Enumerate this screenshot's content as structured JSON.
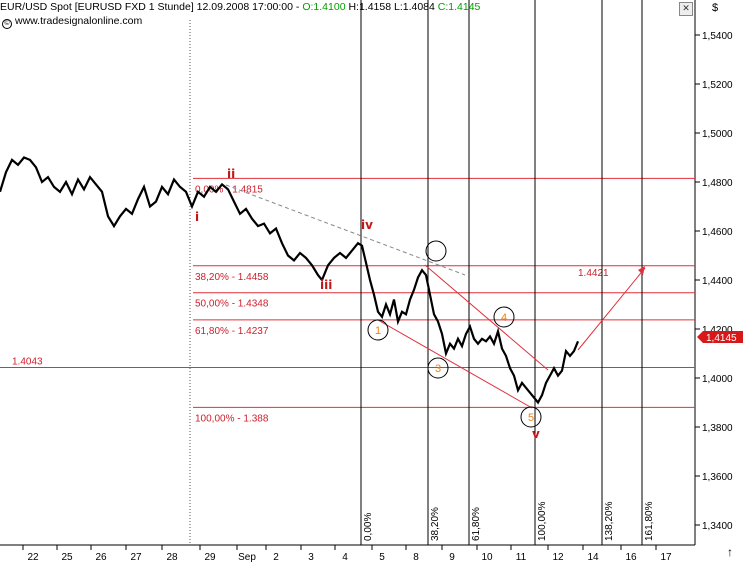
{
  "header": {
    "symbol": "EUR/USD Spot [EURUSD FXD  1 Stunde] 12.09.2008 17:00:00  - ",
    "open": "O:1.4100",
    "high_low": " H:1.4158  L:1.4084 ",
    "close": "C:1.4145",
    "source": "www.tradesignalonline.com",
    "currency": "$",
    "close_button": "✕",
    "scroll_icon": "arrow-up-icon"
  },
  "chart_data": {
    "type": "line",
    "y_axis_ticks": [
      "1,5400",
      "1,5200",
      "1,5000",
      "1,4800",
      "1,4600",
      "1,4400",
      "1,4200",
      "1,4000",
      "1,3800",
      "1,3600",
      "1,3400"
    ],
    "ylim": [
      1.328,
      1.563
    ],
    "x_axis_ticks": [
      "22",
      "25",
      "26",
      "27",
      "28",
      "29",
      "Sep",
      "2",
      "3",
      "4",
      "5",
      "8",
      "9",
      "10",
      "11",
      "12",
      "14",
      "16",
      "17"
    ],
    "last_price": "1,4145",
    "price_path": [
      [
        0,
        1.476
      ],
      [
        6,
        1.484
      ],
      [
        12,
        1.489
      ],
      [
        18,
        1.487
      ],
      [
        24,
        1.49
      ],
      [
        30,
        1.489
      ],
      [
        36,
        1.486
      ],
      [
        42,
        1.48
      ],
      [
        48,
        1.482
      ],
      [
        54,
        1.478
      ],
      [
        60,
        1.476
      ],
      [
        66,
        1.48
      ],
      [
        72,
        1.475
      ],
      [
        78,
        1.481
      ],
      [
        84,
        1.477
      ],
      [
        90,
        1.482
      ],
      [
        96,
        1.479
      ],
      [
        102,
        1.476
      ],
      [
        108,
        1.466
      ],
      [
        114,
        1.462
      ],
      [
        120,
        1.466
      ],
      [
        126,
        1.469
      ],
      [
        132,
        1.467
      ],
      [
        138,
        1.473
      ],
      [
        144,
        1.478
      ],
      [
        150,
        1.47
      ],
      [
        156,
        1.472
      ],
      [
        162,
        1.478
      ],
      [
        168,
        1.475
      ],
      [
        174,
        1.481
      ],
      [
        180,
        1.478
      ],
      [
        186,
        1.476
      ],
      [
        192,
        1.47
      ],
      [
        198,
        1.476
      ],
      [
        204,
        1.474
      ],
      [
        210,
        1.478
      ],
      [
        216,
        1.476
      ],
      [
        222,
        1.479
      ],
      [
        228,
        1.477
      ],
      [
        234,
        1.472
      ],
      [
        240,
        1.467
      ],
      [
        246,
        1.469
      ],
      [
        252,
        1.465
      ],
      [
        258,
        1.462
      ],
      [
        264,
        1.463
      ],
      [
        270,
        1.459
      ],
      [
        276,
        1.461
      ],
      [
        282,
        1.455
      ],
      [
        288,
        1.45
      ],
      [
        294,
        1.448
      ],
      [
        300,
        1.451
      ],
      [
        306,
        1.449
      ],
      [
        312,
        1.446
      ],
      [
        318,
        1.442
      ],
      [
        322,
        1.44
      ],
      [
        328,
        1.446
      ],
      [
        334,
        1.449
      ],
      [
        340,
        1.451
      ],
      [
        346,
        1.449
      ],
      [
        352,
        1.452
      ],
      [
        358,
        1.455
      ],
      [
        362,
        1.454
      ],
      [
        366,
        1.447
      ],
      [
        370,
        1.44
      ],
      [
        374,
        1.434
      ],
      [
        378,
        1.427
      ],
      [
        382,
        1.425
      ],
      [
        386,
        1.43
      ],
      [
        390,
        1.426
      ],
      [
        394,
        1.432
      ],
      [
        398,
        1.423
      ],
      [
        402,
        1.427
      ],
      [
        406,
        1.426
      ],
      [
        410,
        1.432
      ],
      [
        414,
        1.436
      ],
      [
        418,
        1.441
      ],
      [
        422,
        1.444
      ],
      [
        426,
        1.442
      ],
      [
        430,
        1.434
      ],
      [
        434,
        1.426
      ],
      [
        438,
        1.423
      ],
      [
        442,
        1.418
      ],
      [
        446,
        1.41
      ],
      [
        450,
        1.414
      ],
      [
        454,
        1.412
      ],
      [
        458,
        1.416
      ],
      [
        462,
        1.413
      ],
      [
        466,
        1.418
      ],
      [
        470,
        1.421
      ],
      [
        474,
        1.416
      ],
      [
        478,
        1.414
      ],
      [
        482,
        1.416
      ],
      [
        486,
        1.415
      ],
      [
        490,
        1.417
      ],
      [
        494,
        1.414
      ],
      [
        498,
        1.419
      ],
      [
        502,
        1.412
      ],
      [
        506,
        1.409
      ],
      [
        510,
        1.404
      ],
      [
        514,
        1.401
      ],
      [
        518,
        1.395
      ],
      [
        522,
        1.398
      ],
      [
        526,
        1.396
      ],
      [
        530,
        1.394
      ],
      [
        534,
        1.392
      ],
      [
        538,
        1.39
      ],
      [
        542,
        1.393
      ],
      [
        546,
        1.398
      ],
      [
        550,
        1.401
      ],
      [
        554,
        1.404
      ],
      [
        558,
        1.401
      ],
      [
        562,
        1.403
      ],
      [
        566,
        1.411
      ],
      [
        570,
        1.409
      ],
      [
        574,
        1.411
      ],
      [
        578,
        1.415
      ]
    ],
    "fibonacci_levels": [
      {
        "label": "0,00% - 1.4815",
        "value": 1.4815
      },
      {
        "label": "38,20% - 1.4458",
        "value": 1.4458
      },
      {
        "label": "50,00% - 1.4348",
        "value": 1.4348
      },
      {
        "label": "61,80% - 1.4237",
        "value": 1.4237
      },
      {
        "label": "100,00% - 1.388",
        "value": 1.388
      }
    ],
    "support_line": {
      "label": "1.4043",
      "value": 1.4043
    },
    "target": {
      "label": "1.4421",
      "value": 1.4421
    },
    "time_extensions": [
      "0,00%",
      "38,20%",
      "61,80%",
      "100,00%",
      "138,20%",
      "161,80%"
    ],
    "wave_labels": {
      "roman": [
        "i",
        "ii",
        "iii",
        "iv",
        "v"
      ],
      "numbers": [
        "1",
        "3",
        "4",
        "5"
      ]
    }
  },
  "colors": {
    "price": "#000000",
    "fib": "#e0303c",
    "fib_text": "#d0202c",
    "wave_roman": "#c01818",
    "wave_num": "#f08010",
    "grid": "#000000",
    "badge": "#d81818"
  }
}
